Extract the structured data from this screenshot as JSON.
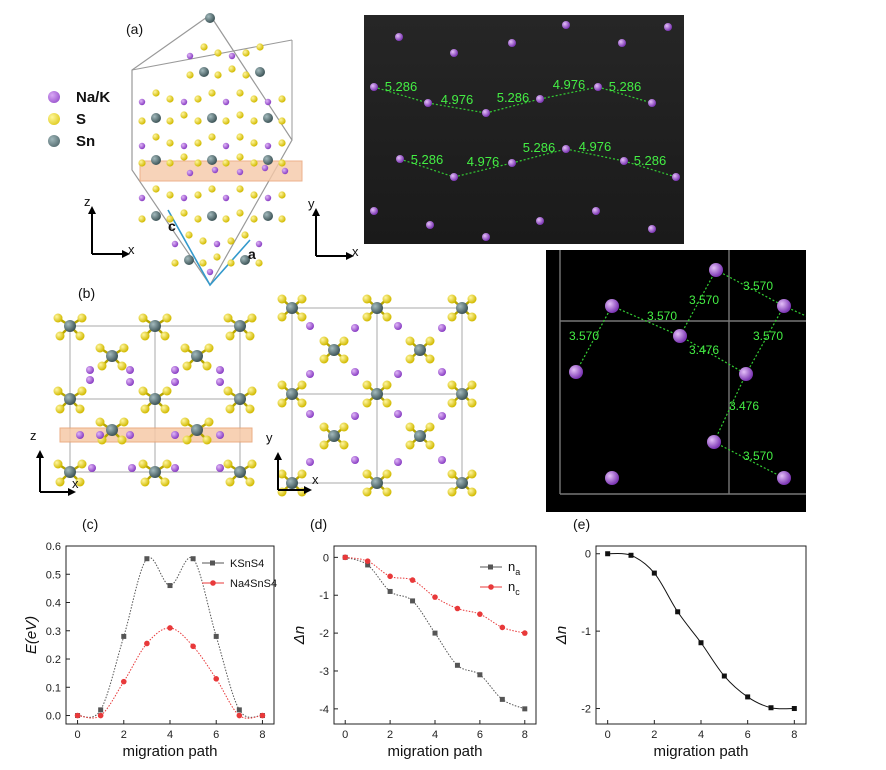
{
  "panels": {
    "a": "(a)",
    "b": "(b)",
    "c": "(c)",
    "d": "(d)",
    "e": "(e)"
  },
  "legend": [
    {
      "label": "Na/K",
      "color": "#9b4fd0"
    },
    {
      "label": "S",
      "color": "#e6d21a"
    },
    {
      "label": "Sn",
      "color": "#5b7276"
    }
  ],
  "axes_labels": {
    "a_left": {
      "up": "z",
      "right": "x"
    },
    "a_right": {
      "up": "y",
      "right": "x"
    },
    "b_left": {
      "up": "z",
      "right": "x"
    },
    "b_right": {
      "up": "y",
      "right": "x"
    },
    "lattice_c": "c",
    "lattice_a": "a"
  },
  "path_distances_a": {
    "row1": [
      "5.286",
      "4.976",
      "5.286",
      "4.976",
      "5.286"
    ],
    "row2": [
      "5.286",
      "4.976",
      "5.286",
      "4.976",
      "5.286"
    ]
  },
  "path_distances_b": [
    "3.570",
    "3.570",
    "3.476",
    "3.570",
    "3.570",
    "3.570",
    "3.476",
    "3.570"
  ],
  "chart_data": [
    {
      "type": "line",
      "panel": "c",
      "xlabel": "migration path",
      "ylabel": "E(eV)",
      "xlim": [
        -0.5,
        8.5
      ],
      "ylim": [
        -0.03,
        0.6
      ],
      "xticks": [
        0,
        2,
        4,
        6,
        8
      ],
      "yticks": [
        0.0,
        0.1,
        0.2,
        0.3,
        0.4,
        0.5,
        0.6
      ],
      "legend_position": "top-right",
      "series": [
        {
          "name": "KSnS4",
          "color": "#555555",
          "marker": "square",
          "x": [
            0,
            1,
            2,
            3,
            4,
            5,
            6,
            7,
            8
          ],
          "y": [
            0.0,
            0.02,
            0.28,
            0.555,
            0.46,
            0.555,
            0.28,
            0.02,
            0.0
          ]
        },
        {
          "name": "Na4SnS4",
          "color": "#e8393a",
          "marker": "circle",
          "x": [
            0,
            1,
            2,
            3,
            4,
            5,
            6,
            7,
            8
          ],
          "y": [
            0.0,
            0.0,
            0.12,
            0.255,
            0.31,
            0.245,
            0.13,
            0.0,
            0.0
          ]
        }
      ]
    },
    {
      "type": "line",
      "panel": "d",
      "xlabel": "migration path",
      "ylabel": "Δn",
      "xlim": [
        -0.5,
        8.5
      ],
      "ylim": [
        -4.4,
        0.3
      ],
      "xticks": [
        0,
        2,
        4,
        6,
        8
      ],
      "yticks": [
        0,
        -1,
        -2,
        -3,
        -4
      ],
      "legend_position": "top-right",
      "series": [
        {
          "name": "n",
          "sub": "a",
          "color": "#555555",
          "marker": "square",
          "x": [
            0,
            1,
            2,
            3,
            4,
            5,
            6,
            7,
            8
          ],
          "y": [
            0.0,
            -0.2,
            -0.9,
            -1.15,
            -2.0,
            -2.85,
            -3.1,
            -3.75,
            -4.0
          ]
        },
        {
          "name": "n",
          "sub": "c",
          "color": "#e8393a",
          "marker": "circle",
          "x": [
            0,
            1,
            2,
            3,
            4,
            5,
            6,
            7,
            8
          ],
          "y": [
            0.0,
            -0.1,
            -0.5,
            -0.6,
            -1.05,
            -1.35,
            -1.5,
            -1.85,
            -2.0
          ]
        }
      ]
    },
    {
      "type": "line",
      "panel": "e",
      "xlabel": "migration path",
      "ylabel": "Δn",
      "xlim": [
        -0.5,
        8.5
      ],
      "ylim": [
        -2.2,
        0.1
      ],
      "xticks": [
        0,
        2,
        4,
        6,
        8
      ],
      "yticks": [
        0,
        -1,
        -2
      ],
      "series": [
        {
          "name": "",
          "color": "#111111",
          "marker": "square",
          "x": [
            0,
            1,
            2,
            3,
            4,
            5,
            6,
            7,
            8
          ],
          "y": [
            0.0,
            -0.02,
            -0.25,
            -0.75,
            -1.15,
            -1.58,
            -1.85,
            -1.99,
            -2.0
          ]
        }
      ]
    }
  ]
}
